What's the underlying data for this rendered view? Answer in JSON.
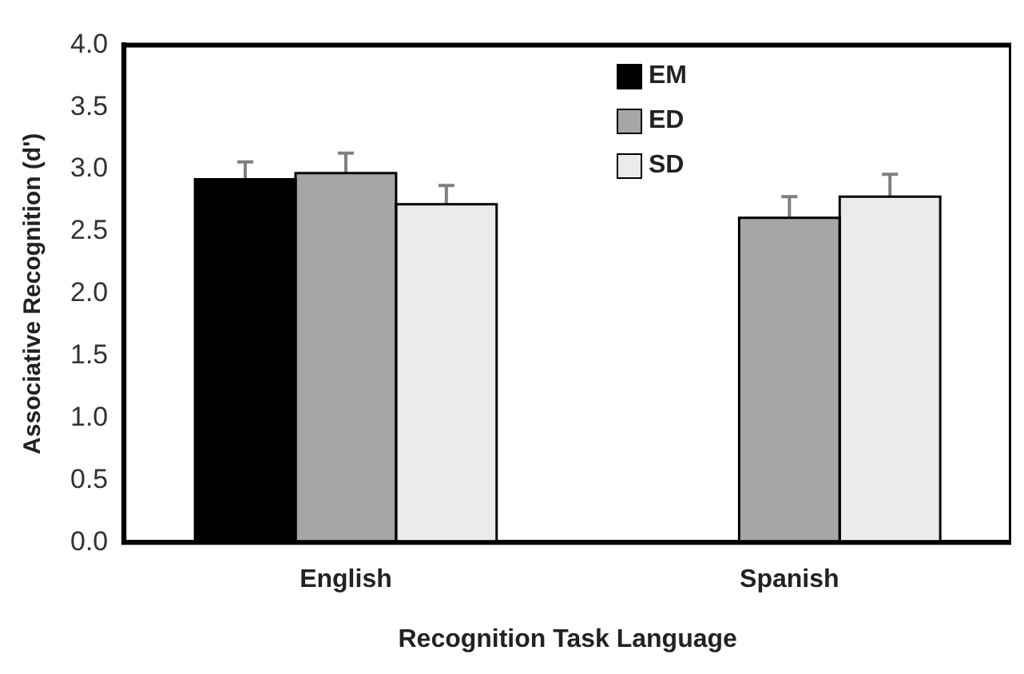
{
  "chart_data": {
    "type": "bar",
    "xlabel": "Recognition Task Language",
    "ylabel": "Associative Recognition (d')",
    "categories": [
      "English",
      "Spanish"
    ],
    "series": [
      {
        "name": "EM",
        "color": "#000000",
        "values": [
          2.92,
          null
        ],
        "errors": [
          [
            2.92,
            3.06
          ],
          null
        ]
      },
      {
        "name": "ED",
        "color": "#a6a6a6",
        "values": [
          2.97,
          2.61
        ],
        "errors": [
          [
            2.97,
            3.13
          ],
          [
            2.61,
            2.78
          ]
        ]
      },
      {
        "name": "SD",
        "color": "#ebebeb",
        "values": [
          2.72,
          2.78
        ],
        "errors": [
          [
            2.72,
            2.87
          ],
          [
            2.78,
            2.96
          ]
        ]
      }
    ],
    "ylim": [
      0,
      4
    ],
    "yticks": [
      {
        "value": 0,
        "label": "0.0"
      },
      {
        "value": 0.5,
        "label": "0.5"
      },
      {
        "value": 1,
        "label": "1.0"
      },
      {
        "value": 1.5,
        "label": "1.5"
      },
      {
        "value": 2,
        "label": "2.0"
      },
      {
        "value": 2.5,
        "label": "2.5"
      },
      {
        "value": 3,
        "label": "3.0"
      },
      {
        "value": 3.5,
        "label": "3.5"
      },
      {
        "value": 4,
        "label": "4.0"
      }
    ],
    "grid": false,
    "legend": "top"
  }
}
